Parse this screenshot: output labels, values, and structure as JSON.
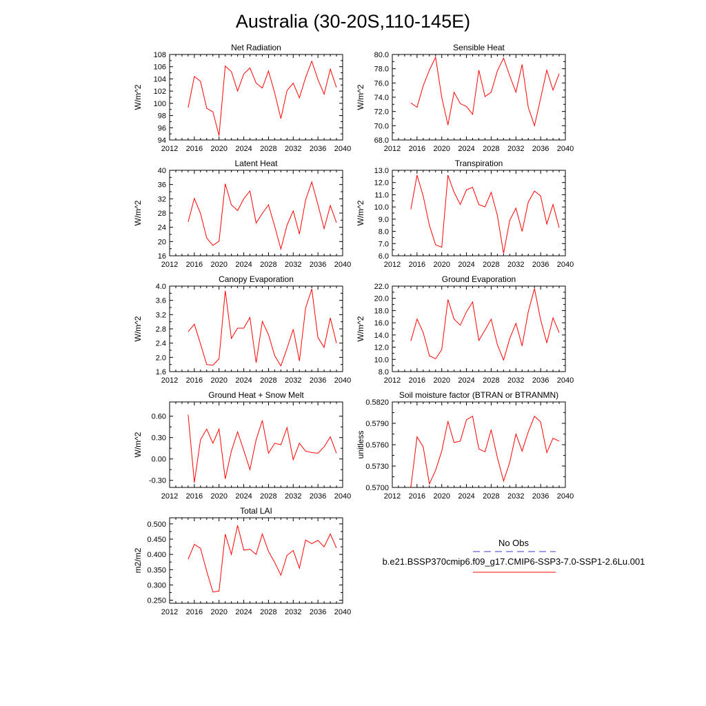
{
  "page_title": "Australia (30-20S,110-145E)",
  "colors": {
    "model_line": "#ff0000",
    "obs_line": "#3a3ac8",
    "axis": "#000000"
  },
  "legend": {
    "obs_label": "No Obs",
    "model_label": "b.e21.BSSP370cmip6.f09_g17.CMIP6-SSP3-7.0-SSP1-2.6Lu.001"
  },
  "chart_data": [
    {
      "type": "line",
      "title": "Net Radiation",
      "ylabel": "W/m^2",
      "xlim": [
        2012,
        2040
      ],
      "ylim": [
        94,
        108
      ],
      "xticks": [
        2012,
        2016,
        2020,
        2024,
        2028,
        2032,
        2036,
        2040
      ],
      "xtick_labels": [
        "2012",
        "2016",
        "2020",
        "2024",
        "2028",
        "2032",
        "2036",
        "2040"
      ],
      "yticks": [
        94,
        96,
        98,
        100,
        102,
        104,
        106,
        108
      ],
      "ytick_labels": [
        "94",
        "96",
        "98",
        "100",
        "102",
        "104",
        "106",
        "108"
      ],
      "x": [
        2015,
        2016,
        2017,
        2018,
        2019,
        2020,
        2021,
        2022,
        2023,
        2024,
        2025,
        2026,
        2027,
        2028,
        2029,
        2030,
        2031,
        2032,
        2033,
        2034,
        2035,
        2036,
        2037,
        2038,
        2039
      ],
      "y": [
        99.3,
        104.4,
        103.6,
        99.2,
        98.6,
        94.7,
        106.1,
        105.2,
        102.0,
        104.8,
        105.8,
        103.3,
        102.5,
        105.3,
        101.7,
        97.5,
        102.1,
        103.3,
        100.9,
        104.2,
        106.9,
        103.9,
        101.5,
        105.6,
        102.6
      ],
      "series": [
        {
          "name": "b.e21.BSSP370cmip6.f09_g17.CMIP6-SSP3-7.0-SSP1-2.6Lu.001"
        }
      ]
    },
    {
      "type": "line",
      "title": "Sensible Heat",
      "ylabel": "W/m^2",
      "xlim": [
        2012,
        2040
      ],
      "ylim": [
        68,
        80
      ],
      "xticks": [
        2012,
        2016,
        2020,
        2024,
        2028,
        2032,
        2036,
        2040
      ],
      "xtick_labels": [
        "2012",
        "2016",
        "2020",
        "2024",
        "2028",
        "2032",
        "2036",
        "2040"
      ],
      "yticks": [
        68,
        70,
        72,
        74,
        76,
        78,
        80
      ],
      "ytick_labels": [
        "68.0",
        "70.0",
        "72.0",
        "74.0",
        "76.0",
        "78.0",
        "80.0"
      ],
      "x": [
        2015,
        2016,
        2017,
        2018,
        2019,
        2020,
        2021,
        2022,
        2023,
        2024,
        2025,
        2026,
        2027,
        2028,
        2029,
        2030,
        2031,
        2032,
        2033,
        2034,
        2035,
        2036,
        2037,
        2038,
        2039
      ],
      "y": [
        73.2,
        72.6,
        75.6,
        77.8,
        79.6,
        74.0,
        70.1,
        74.7,
        73.1,
        72.7,
        71.6,
        77.8,
        74.1,
        74.7,
        77.7,
        79.5,
        77.0,
        74.7,
        78.6,
        72.6,
        70.0,
        73.8,
        77.8,
        75.0,
        77.3
      ],
      "series": [
        {
          "name": "b.e21.BSSP370cmip6.f09_g17.CMIP6-SSP3-7.0-SSP1-2.6Lu.001"
        }
      ]
    },
    {
      "type": "line",
      "title": "Latent Heat",
      "ylabel": "W/m^2",
      "xlim": [
        2012,
        2040
      ],
      "ylim": [
        16,
        40
      ],
      "xticks": [
        2012,
        2016,
        2020,
        2024,
        2028,
        2032,
        2036,
        2040
      ],
      "xtick_labels": [
        "2012",
        "2016",
        "2020",
        "2024",
        "2028",
        "2032",
        "2036",
        "2040"
      ],
      "yticks": [
        16,
        20,
        24,
        28,
        32,
        36,
        40
      ],
      "ytick_labels": [
        "16",
        "20",
        "24",
        "28",
        "32",
        "36",
        "40"
      ],
      "x": [
        2015,
        2016,
        2017,
        2018,
        2019,
        2020,
        2021,
        2022,
        2023,
        2024,
        2025,
        2026,
        2027,
        2028,
        2029,
        2030,
        2031,
        2032,
        2033,
        2034,
        2035,
        2036,
        2037,
        2038,
        2039
      ],
      "y": [
        25.5,
        32.1,
        27.9,
        21.0,
        18.9,
        20.1,
        36.2,
        30.3,
        28.7,
        32.0,
        34.2,
        25.2,
        27.9,
        30.3,
        24.3,
        17.9,
        24.6,
        28.6,
        22.1,
        31.6,
        36.7,
        30.4,
        23.6,
        30.1,
        25.3
      ],
      "series": [
        {
          "name": "b.e21.BSSP370cmip6.f09_g17.CMIP6-SSP3-7.0-SSP1-2.6Lu.001"
        }
      ]
    },
    {
      "type": "line",
      "title": "Transpiration",
      "ylabel": "W/m^2",
      "xlim": [
        2012,
        2040
      ],
      "ylim": [
        6,
        13
      ],
      "xticks": [
        2012,
        2016,
        2020,
        2024,
        2028,
        2032,
        2036,
        2040
      ],
      "xtick_labels": [
        "2012",
        "2016",
        "2020",
        "2024",
        "2028",
        "2032",
        "2036",
        "2040"
      ],
      "yticks": [
        6,
        7,
        8,
        9,
        10,
        11,
        12,
        13
      ],
      "ytick_labels": [
        "6.0",
        "7.0",
        "8.0",
        "9.0",
        "10.0",
        "11.0",
        "12.0",
        "13.0"
      ],
      "x": [
        2015,
        2016,
        2017,
        2018,
        2019,
        2020,
        2021,
        2022,
        2023,
        2024,
        2025,
        2026,
        2027,
        2028,
        2029,
        2030,
        2031,
        2032,
        2033,
        2034,
        2035,
        2036,
        2037,
        2038,
        2039
      ],
      "y": [
        9.8,
        12.6,
        10.9,
        8.5,
        6.9,
        6.7,
        12.6,
        11.2,
        10.2,
        11.4,
        11.6,
        10.2,
        10.0,
        11.2,
        9.3,
        6.2,
        8.9,
        9.9,
        8.0,
        10.4,
        11.3,
        10.9,
        8.6,
        10.2,
        8.3
      ],
      "series": [
        {
          "name": "b.e21.BSSP370cmip6.f09_g17.CMIP6-SSP3-7.0-SSP1-2.6Lu.001"
        }
      ]
    },
    {
      "type": "line",
      "title": "Canopy Evaporation",
      "ylabel": "W/m^2",
      "xlim": [
        2012,
        2040
      ],
      "ylim": [
        1.6,
        4.0
      ],
      "xticks": [
        2012,
        2016,
        2020,
        2024,
        2028,
        2032,
        2036,
        2040
      ],
      "xtick_labels": [
        "2012",
        "2016",
        "2020",
        "2024",
        "2028",
        "2032",
        "2036",
        "2040"
      ],
      "yticks": [
        1.6,
        2.0,
        2.4,
        2.8,
        3.2,
        3.6,
        4.0
      ],
      "ytick_labels": [
        "1.6",
        "2.0",
        "2.4",
        "2.8",
        "3.2",
        "3.6",
        "4.0"
      ],
      "x": [
        2015,
        2016,
        2017,
        2018,
        2019,
        2020,
        2021,
        2022,
        2023,
        2024,
        2025,
        2026,
        2027,
        2028,
        2029,
        2030,
        2031,
        2032,
        2033,
        2034,
        2035,
        2036,
        2037,
        2038,
        2039
      ],
      "y": [
        2.72,
        2.93,
        2.38,
        1.8,
        1.78,
        1.96,
        3.87,
        2.53,
        2.82,
        2.82,
        3.12,
        1.85,
        3.01,
        2.64,
        2.05,
        1.76,
        2.25,
        2.79,
        1.9,
        3.38,
        3.92,
        2.56,
        2.28,
        3.11,
        2.4
      ],
      "series": [
        {
          "name": "b.e21.BSSP370cmip6.f09_g17.CMIP6-SSP3-7.0-SSP1-2.6Lu.001"
        }
      ]
    },
    {
      "type": "line",
      "title": "Ground Evaporation",
      "ylabel": "W/m^2",
      "xlim": [
        2012,
        2040
      ],
      "ylim": [
        8,
        22
      ],
      "xticks": [
        2012,
        2016,
        2020,
        2024,
        2028,
        2032,
        2036,
        2040
      ],
      "xtick_labels": [
        "2012",
        "2016",
        "2020",
        "2024",
        "2028",
        "2032",
        "2036",
        "2040"
      ],
      "yticks": [
        8,
        10,
        12,
        14,
        16,
        18,
        20,
        22
      ],
      "ytick_labels": [
        "8.0",
        "10.0",
        "12.0",
        "14.0",
        "16.0",
        "18.0",
        "20.0",
        "22.0"
      ],
      "x": [
        2015,
        2016,
        2017,
        2018,
        2019,
        2020,
        2021,
        2022,
        2023,
        2024,
        2025,
        2026,
        2027,
        2028,
        2029,
        2030,
        2031,
        2032,
        2033,
        2034,
        2035,
        2036,
        2037,
        2038,
        2039
      ],
      "y": [
        13.0,
        16.6,
        14.4,
        10.6,
        10.1,
        11.6,
        19.8,
        16.6,
        15.6,
        17.8,
        19.4,
        13.1,
        14.8,
        16.6,
        12.4,
        9.9,
        13.4,
        15.9,
        12.2,
        17.8,
        21.6,
        16.5,
        12.7,
        16.8,
        14.4
      ],
      "series": [
        {
          "name": "b.e21.BSSP370cmip6.f09_g17.CMIP6-SSP3-7.0-SSP1-2.6Lu.001"
        }
      ]
    },
    {
      "type": "line",
      "title": "Ground Heat + Snow Melt",
      "ylabel": "W/m^2",
      "xlim": [
        2012,
        2040
      ],
      "ylim": [
        -0.4,
        0.8
      ],
      "xticks": [
        2012,
        2016,
        2020,
        2024,
        2028,
        2032,
        2036,
        2040
      ],
      "xtick_labels": [
        "2012",
        "2016",
        "2020",
        "2024",
        "2028",
        "2032",
        "2036",
        "2040"
      ],
      "yticks": [
        -0.3,
        0.0,
        0.3,
        0.6
      ],
      "ytick_labels": [
        "-0.30",
        "0.00",
        "0.30",
        "0.60"
      ],
      "x": [
        2015,
        2016,
        2017,
        2018,
        2019,
        2020,
        2021,
        2022,
        2023,
        2024,
        2025,
        2026,
        2027,
        2028,
        2029,
        2030,
        2031,
        2032,
        2033,
        2034,
        2035,
        2036,
        2037,
        2038,
        2039
      ],
      "y": [
        0.62,
        -0.33,
        0.27,
        0.42,
        0.22,
        0.42,
        -0.28,
        0.11,
        0.38,
        0.12,
        -0.15,
        0.27,
        0.54,
        0.08,
        0.22,
        0.2,
        0.44,
        -0.01,
        0.22,
        0.11,
        0.09,
        0.08,
        0.17,
        0.31,
        0.08
      ],
      "series": [
        {
          "name": "b.e21.BSSP370cmip6.f09_g17.CMIP6-SSP3-7.0-SSP1-2.6Lu.001"
        }
      ]
    },
    {
      "type": "line",
      "title": "Soil moisture factor (BTRAN or BTRANMN)",
      "ylabel": "unitless",
      "xlim": [
        2012,
        2040
      ],
      "ylim": [
        0.57,
        0.582
      ],
      "xticks": [
        2012,
        2016,
        2020,
        2024,
        2028,
        2032,
        2036,
        2040
      ],
      "xtick_labels": [
        "2012",
        "2016",
        "2020",
        "2024",
        "2028",
        "2032",
        "2036",
        "2040"
      ],
      "yticks": [
        0.57,
        0.573,
        0.576,
        0.579,
        0.582
      ],
      "ytick_labels": [
        "0.5700",
        "0.5730",
        "0.5760",
        "0.5790",
        "0.5820"
      ],
      "x": [
        2015,
        2016,
        2017,
        2018,
        2019,
        2020,
        2021,
        2022,
        2023,
        2024,
        2025,
        2026,
        2027,
        2028,
        2029,
        2030,
        2031,
        2032,
        2033,
        2034,
        2035,
        2036,
        2037,
        2038,
        2039
      ],
      "y": [
        0.57,
        0.5771,
        0.5757,
        0.5705,
        0.5724,
        0.5751,
        0.5793,
        0.5763,
        0.5765,
        0.5795,
        0.58,
        0.5754,
        0.575,
        0.5781,
        0.5742,
        0.5709,
        0.5735,
        0.5775,
        0.5751,
        0.5778,
        0.58,
        0.5792,
        0.5749,
        0.5769,
        0.5765
      ],
      "series": [
        {
          "name": "b.e21.BSSP370cmip6.f09_g17.CMIP6-SSP3-7.0-SSP1-2.6Lu.001"
        }
      ]
    },
    {
      "type": "line",
      "title": "Total LAI",
      "ylabel": "m2/m2",
      "xlim": [
        2012,
        2040
      ],
      "ylim": [
        0.24,
        0.52
      ],
      "xticks": [
        2012,
        2016,
        2020,
        2024,
        2028,
        2032,
        2036,
        2040
      ],
      "xtick_labels": [
        "2012",
        "2016",
        "2020",
        "2024",
        "2028",
        "2032",
        "2036",
        "2040"
      ],
      "yticks": [
        0.25,
        0.3,
        0.35,
        0.4,
        0.45,
        0.5
      ],
      "ytick_labels": [
        "0.250",
        "0.300",
        "0.350",
        "0.400",
        "0.450",
        "0.500"
      ],
      "x": [
        2015,
        2016,
        2017,
        2018,
        2019,
        2020,
        2021,
        2022,
        2023,
        2024,
        2025,
        2026,
        2027,
        2028,
        2029,
        2030,
        2031,
        2032,
        2033,
        2034,
        2035,
        2036,
        2037,
        2038,
        2039
      ],
      "y": [
        0.384,
        0.433,
        0.42,
        0.345,
        0.277,
        0.28,
        0.466,
        0.4,
        0.495,
        0.414,
        0.417,
        0.4,
        0.467,
        0.41,
        0.374,
        0.332,
        0.397,
        0.413,
        0.355,
        0.447,
        0.435,
        0.446,
        0.425,
        0.467,
        0.421
      ],
      "series": [
        {
          "name": "b.e21.BSSP370cmip6.f09_g17.CMIP6-SSP3-7.0-SSP1-2.6Lu.001"
        }
      ]
    }
  ]
}
